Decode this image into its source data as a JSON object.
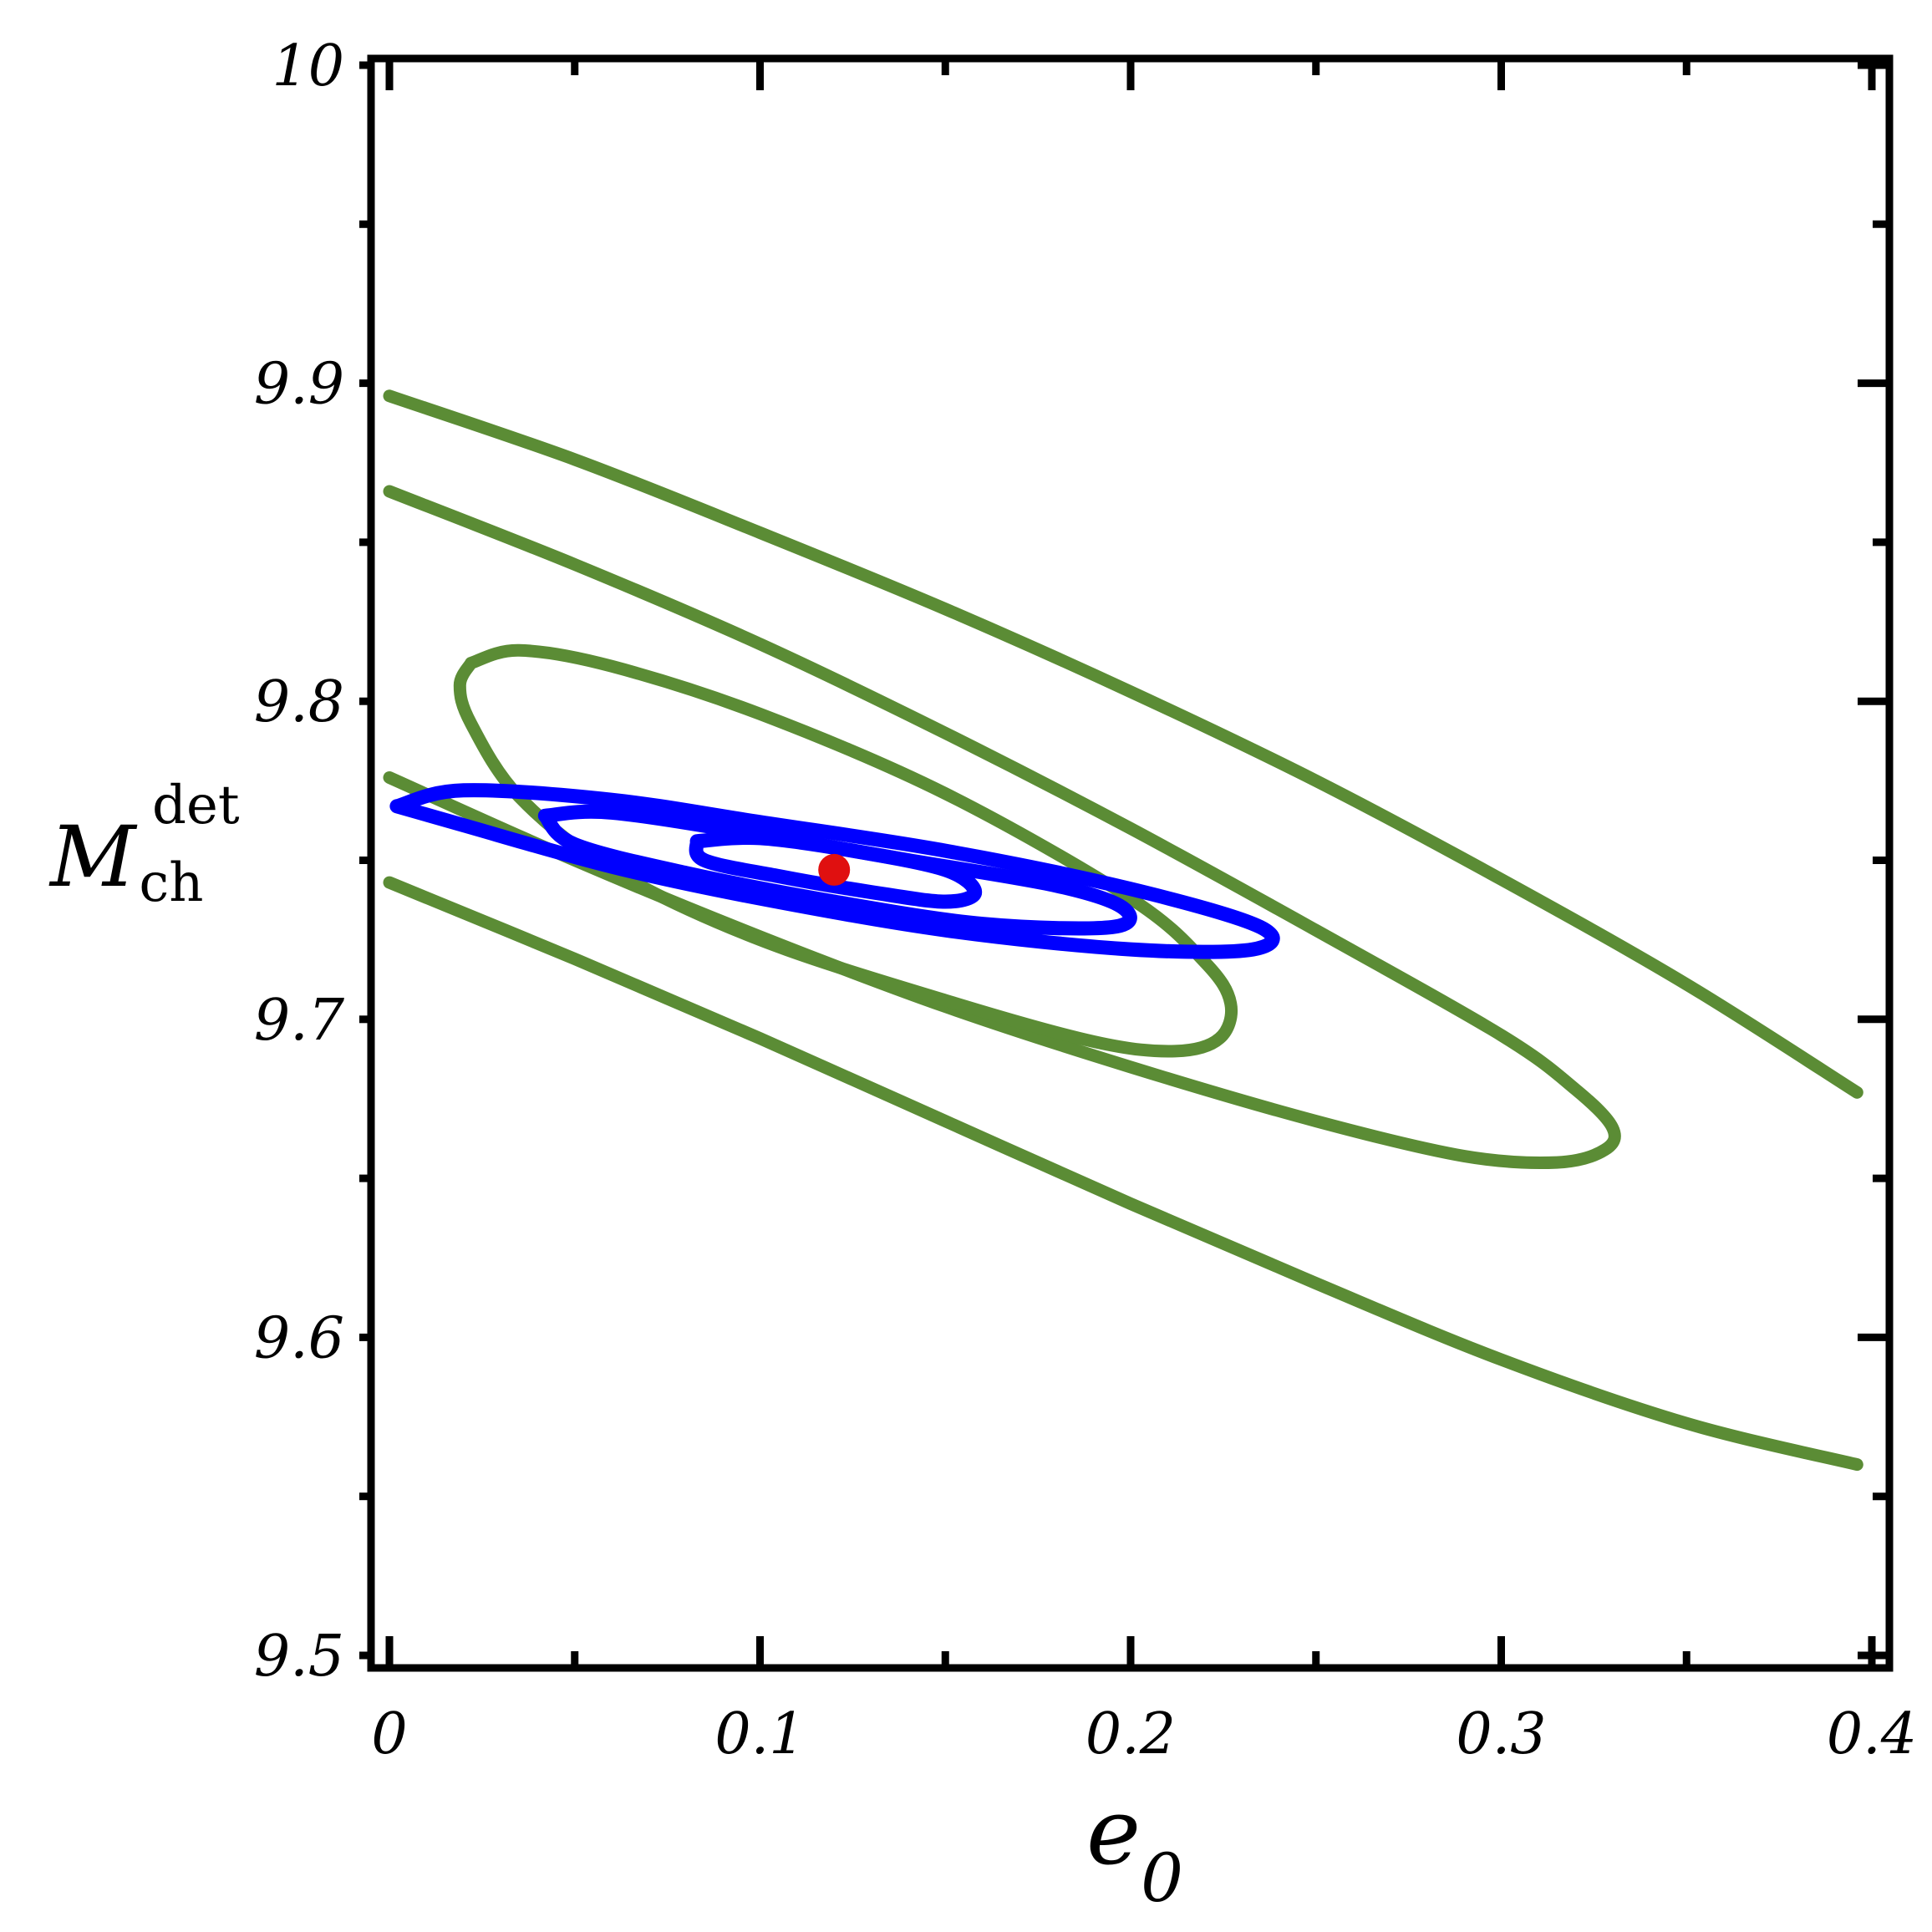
{
  "chart_data": {
    "type": "line",
    "title": "",
    "xlabel": "e",
    "xlabel_sub": "0",
    "ylabel": "M",
    "ylabel_sub": "ch",
    "ylabel_sup": "det",
    "xlim": [
      0,
      0.4
    ],
    "ylim": [
      9.5,
      10.0
    ],
    "xticks": [
      0,
      0.1,
      0.2,
      0.3,
      0.4
    ],
    "xtick_labels": [
      "0",
      "0.1",
      "0.2",
      "0.3",
      "0.4"
    ],
    "yticks": [
      9.5,
      9.6,
      9.7,
      9.8,
      9.9,
      10.0
    ],
    "ytick_labels": [
      "9.5",
      "9.6",
      "9.7",
      "9.8",
      "9.9",
      "10"
    ],
    "x_minor_step": 0.05,
    "y_minor_step": 0.05,
    "grid": false,
    "colors": {
      "green": "#5b8c35",
      "blue": "#0000ff",
      "red": "#e01010"
    },
    "series": [
      {
        "color": "green",
        "points": [
          [
            0.0,
            9.896
          ],
          [
            0.05,
            9.876
          ],
          [
            0.1,
            9.853
          ],
          [
            0.15,
            9.829
          ],
          [
            0.2,
            9.803
          ],
          [
            0.25,
            9.775
          ],
          [
            0.3,
            9.744
          ],
          [
            0.35,
            9.711
          ],
          [
            0.396,
            9.677
          ]
        ]
      },
      {
        "color": "green",
        "points": [
          [
            0.0,
            9.866
          ],
          [
            0.05,
            9.843
          ],
          [
            0.1,
            9.818
          ],
          [
            0.15,
            9.79
          ],
          [
            0.2,
            9.76
          ],
          [
            0.25,
            9.728
          ],
          [
            0.3,
            9.695
          ],
          [
            0.32,
            9.678
          ],
          [
            0.33,
            9.666
          ],
          [
            0.328,
            9.659
          ],
          [
            0.315,
            9.655
          ],
          [
            0.29,
            9.657
          ],
          [
            0.25,
            9.668
          ],
          [
            0.2,
            9.685
          ],
          [
            0.15,
            9.704
          ],
          [
            0.1,
            9.726
          ],
          [
            0.05,
            9.75
          ],
          [
            0.0,
            9.776
          ]
        ]
      },
      {
        "color": "green",
        "points": [
          [
            0.0,
            9.743
          ],
          [
            0.05,
            9.719
          ],
          [
            0.1,
            9.694
          ],
          [
            0.15,
            9.668
          ],
          [
            0.2,
            9.642
          ],
          [
            0.25,
            9.617
          ],
          [
            0.3,
            9.593
          ],
          [
            0.35,
            9.573
          ],
          [
            0.396,
            9.56
          ]
        ]
      },
      {
        "color": "green",
        "points": [
          [
            0.022,
            9.812
          ],
          [
            0.035,
            9.816
          ],
          [
            0.06,
            9.811
          ],
          [
            0.1,
            9.796
          ],
          [
            0.15,
            9.771
          ],
          [
            0.2,
            9.738
          ],
          [
            0.22,
            9.718
          ],
          [
            0.227,
            9.705
          ],
          [
            0.224,
            9.694
          ],
          [
            0.212,
            9.69
          ],
          [
            0.19,
            9.693
          ],
          [
            0.15,
            9.706
          ],
          [
            0.1,
            9.725
          ],
          [
            0.06,
            9.747
          ],
          [
            0.035,
            9.77
          ],
          [
            0.022,
            9.793
          ],
          [
            0.019,
            9.805
          ],
          [
            0.022,
            9.812
          ]
        ]
      },
      {
        "color": "blue",
        "points": [
          [
            0.002,
            9.767
          ],
          [
            0.02,
            9.772
          ],
          [
            0.06,
            9.769
          ],
          [
            0.1,
            9.762
          ],
          [
            0.15,
            9.753
          ],
          [
            0.2,
            9.741
          ],
          [
            0.235,
            9.729
          ],
          [
            0.233,
            9.722
          ],
          [
            0.2,
            9.722
          ],
          [
            0.15,
            9.728
          ],
          [
            0.1,
            9.738
          ],
          [
            0.06,
            9.748
          ],
          [
            0.02,
            9.761
          ],
          [
            0.002,
            9.767
          ]
        ]
      },
      {
        "color": "blue",
        "points": [
          [
            0.042,
            9.764
          ],
          [
            0.06,
            9.765
          ],
          [
            0.1,
            9.758
          ],
          [
            0.14,
            9.75
          ],
          [
            0.18,
            9.742
          ],
          [
            0.198,
            9.735
          ],
          [
            0.195,
            9.729
          ],
          [
            0.16,
            9.73
          ],
          [
            0.12,
            9.737
          ],
          [
            0.08,
            9.746
          ],
          [
            0.05,
            9.755
          ],
          [
            0.042,
            9.764
          ]
        ]
      },
      {
        "color": "blue",
        "points": [
          [
            0.083,
            9.756
          ],
          [
            0.1,
            9.757
          ],
          [
            0.125,
            9.753
          ],
          [
            0.15,
            9.747
          ],
          [
            0.158,
            9.74
          ],
          [
            0.15,
            9.737
          ],
          [
            0.13,
            9.74
          ],
          [
            0.105,
            9.745
          ],
          [
            0.085,
            9.75
          ],
          [
            0.083,
            9.756
          ]
        ]
      }
    ],
    "point": {
      "x": 0.12,
      "y": 9.747,
      "color": "red"
    }
  }
}
